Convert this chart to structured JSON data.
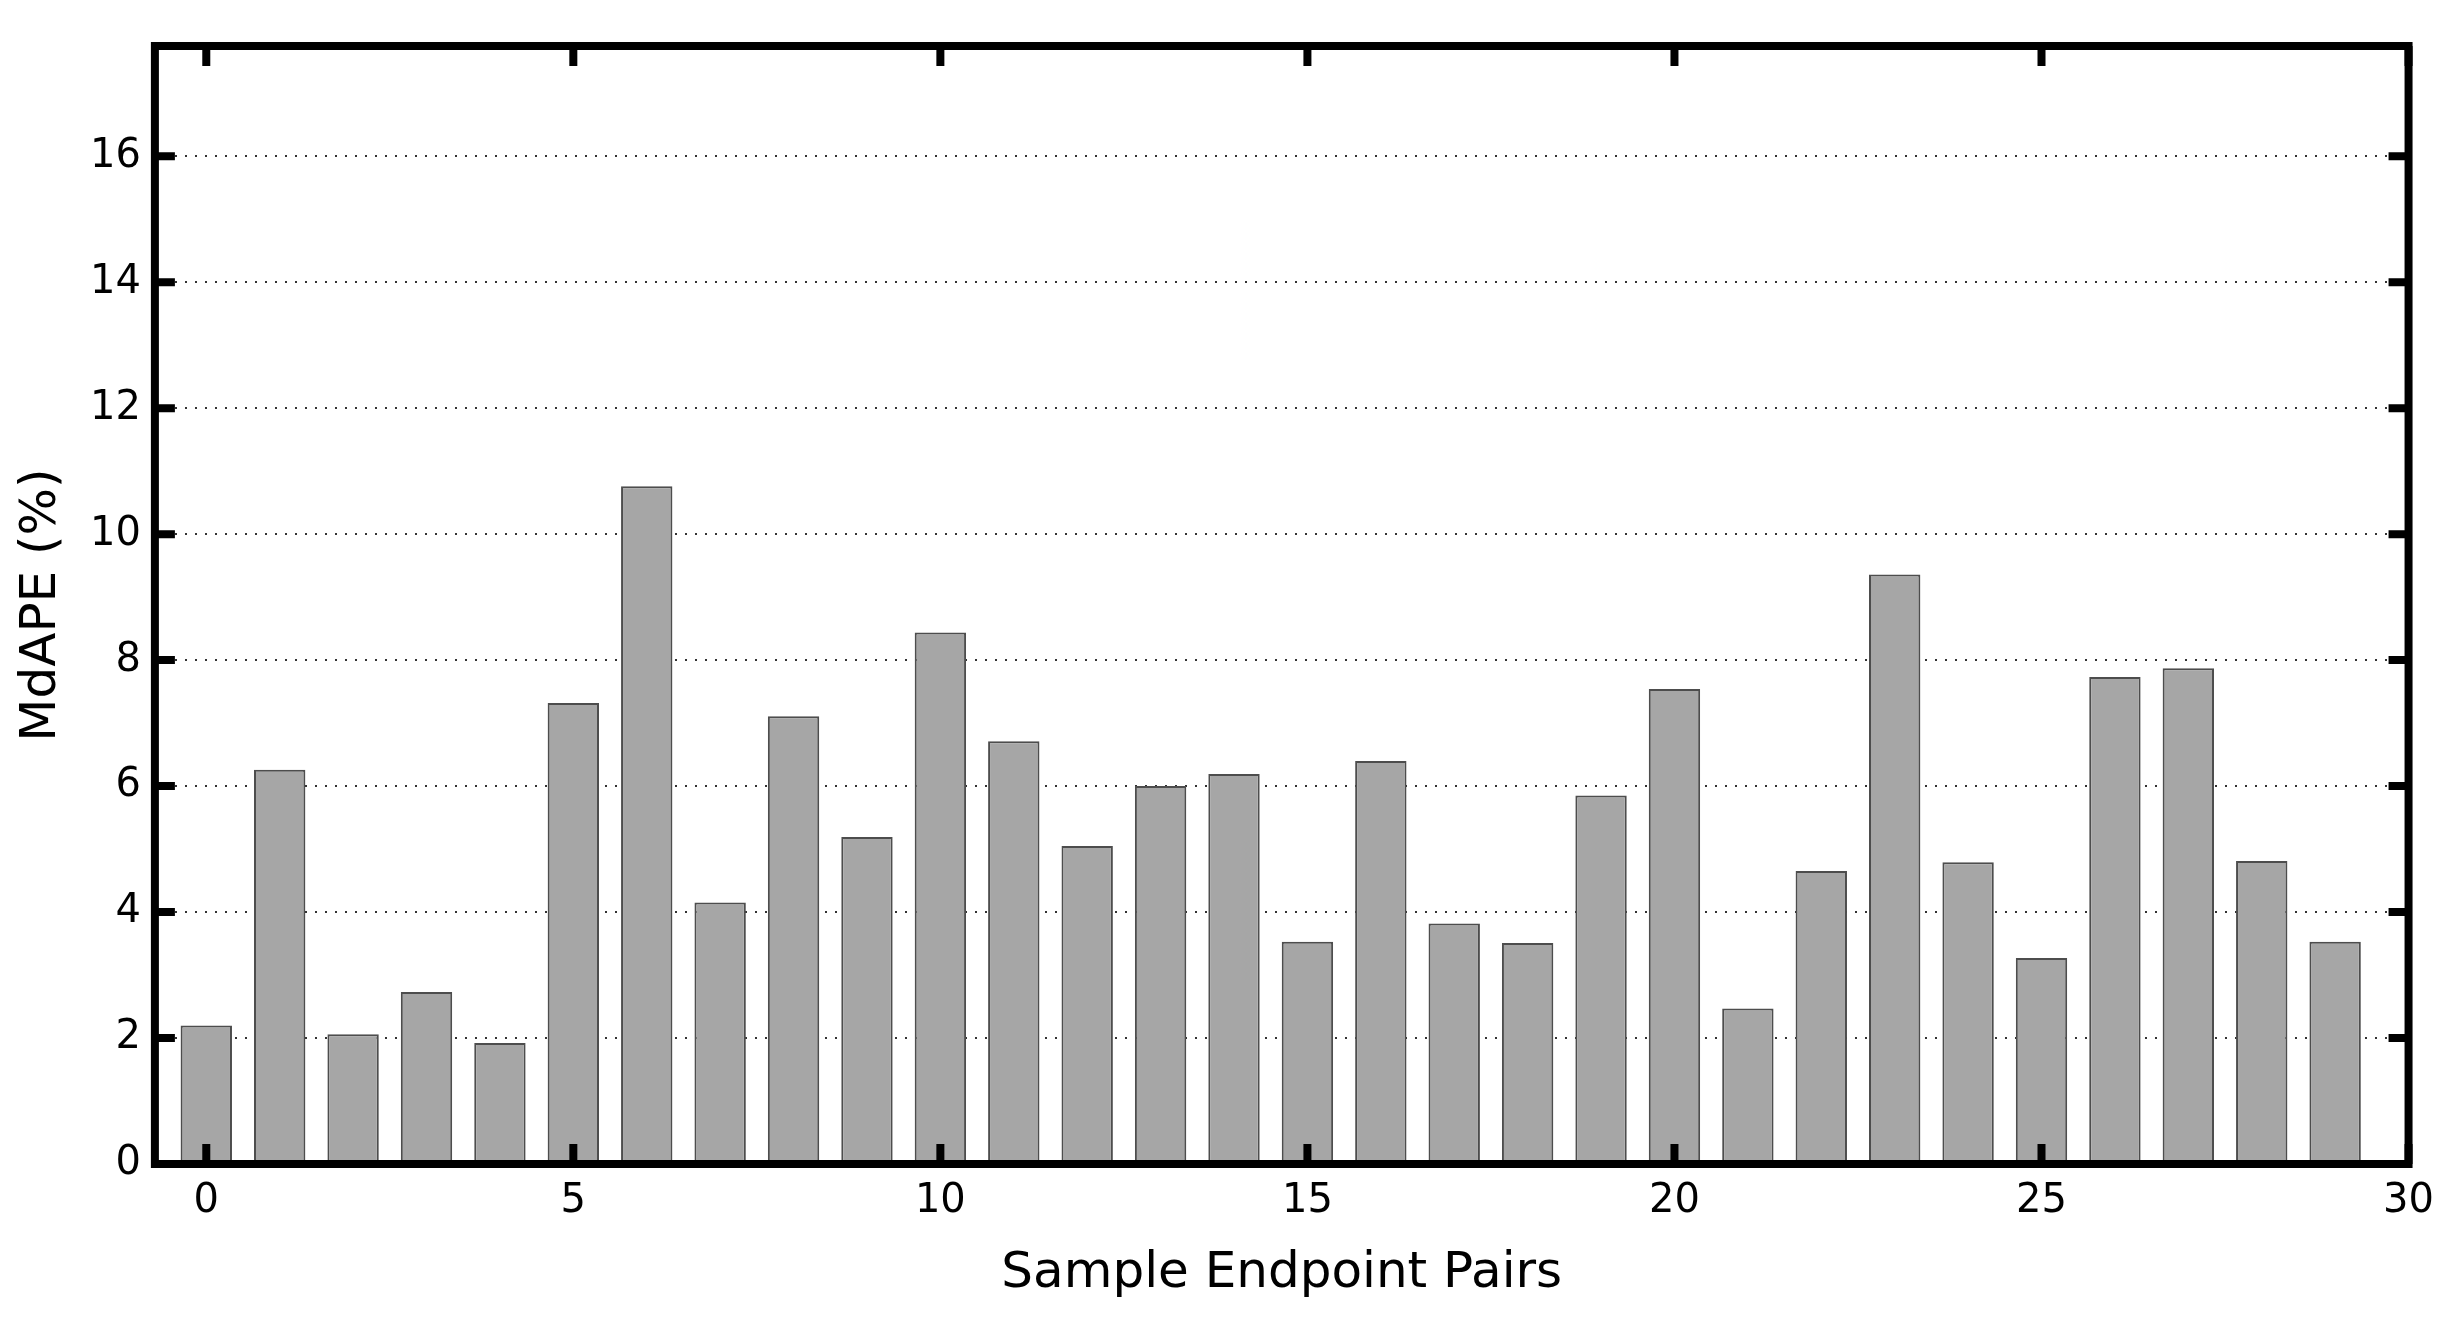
{
  "chart_data": {
    "type": "bar",
    "xlabel": "Sample Endpoint Pairs",
    "ylabel": "MdAPE (%)",
    "x": [
      0,
      1,
      2,
      3,
      4,
      5,
      6,
      7,
      8,
      9,
      10,
      11,
      12,
      13,
      14,
      15,
      16,
      17,
      18,
      19,
      20,
      21,
      22,
      23,
      24,
      25,
      26,
      27,
      28,
      29
    ],
    "values": [
      2.2,
      6.26,
      2.06,
      2.73,
      1.92,
      7.32,
      10.76,
      4.15,
      7.11,
      5.19,
      8.44,
      6.71,
      5.05,
      6.0,
      6.19,
      3.53,
      6.4,
      3.82,
      3.51,
      5.85,
      7.54,
      2.47,
      4.65,
      9.36,
      4.79,
      3.27,
      7.73,
      7.87,
      4.81,
      3.53
    ],
    "color": "#a6a6a6",
    "xlim": [
      -0.7,
      30
    ],
    "xticks": [
      0,
      5,
      10,
      15,
      20,
      25,
      30
    ],
    "ylim": [
      0,
      17.75
    ],
    "yticks": [
      0,
      2,
      4,
      6,
      8,
      10,
      12,
      14,
      16
    ],
    "grid": "y",
    "legend": false
  }
}
